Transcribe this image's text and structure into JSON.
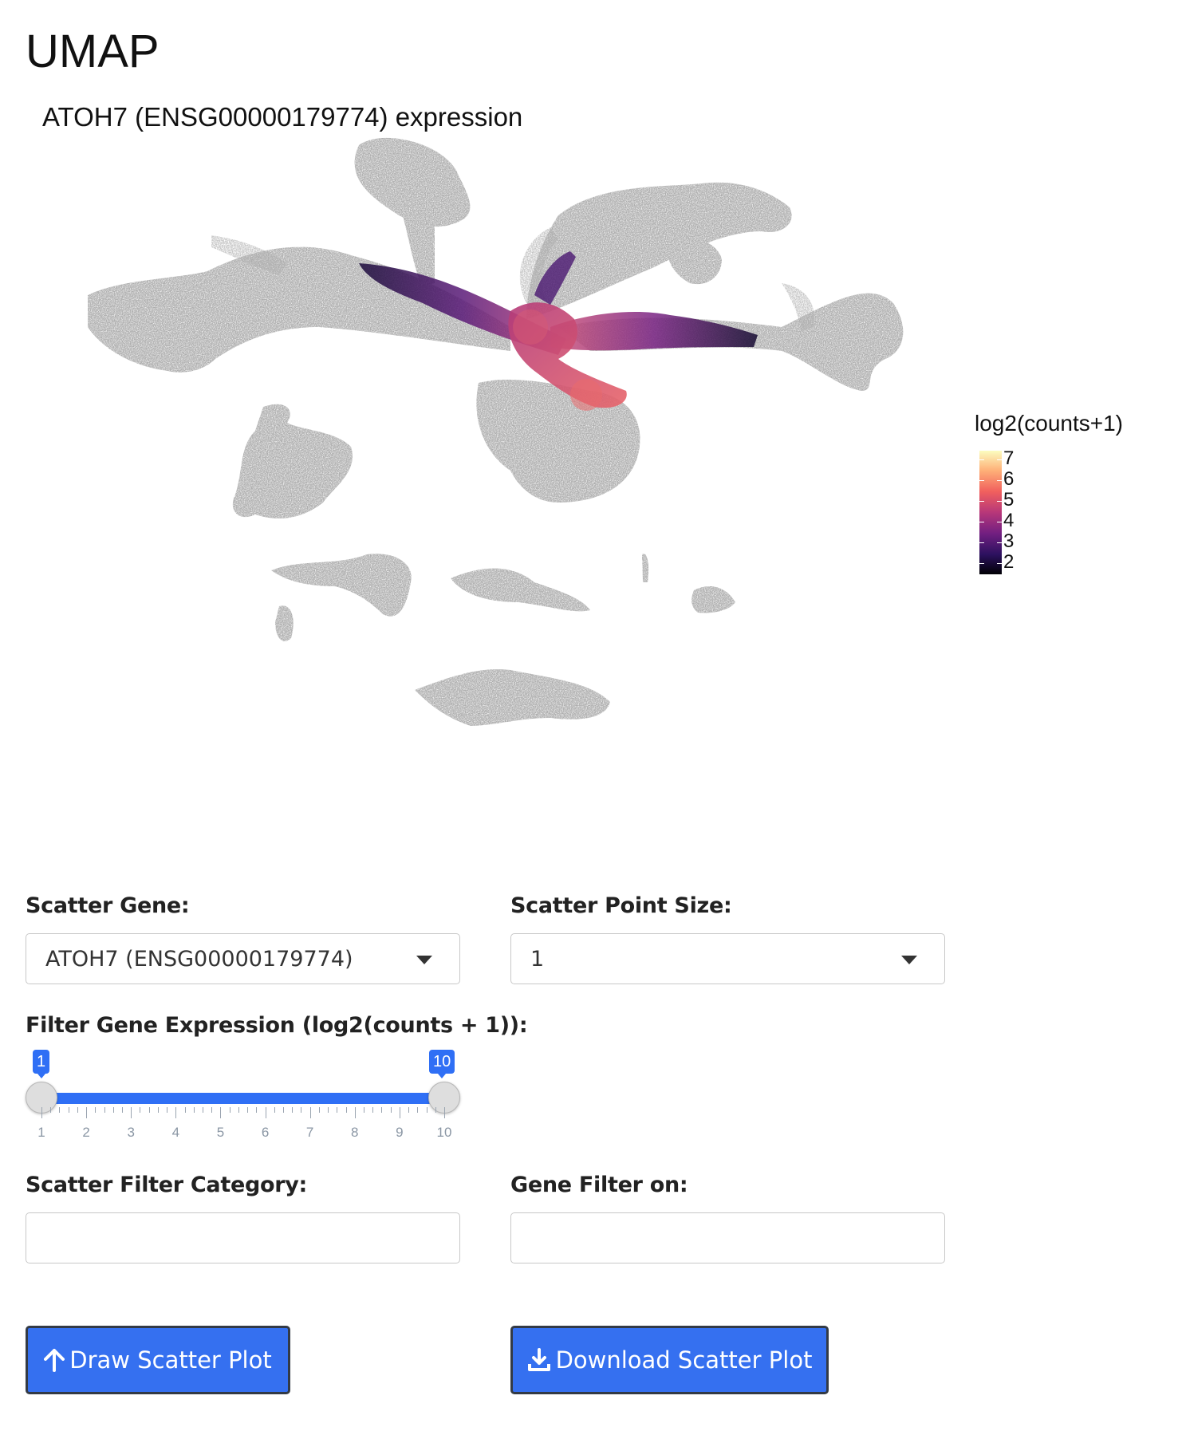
{
  "page": {
    "title": "UMAP"
  },
  "plot": {
    "title": "ATOH7 (ENSG00000179774) expression",
    "legend": {
      "title": "log2(counts+1)",
      "ticks": [
        "7",
        "6",
        "5",
        "4",
        "3",
        "2"
      ]
    },
    "colors": {
      "background_cells": "#6b6b6b",
      "colormap": [
        "#000004",
        "#2c115f",
        "#721f81",
        "#b73779",
        "#f1605d",
        "#feb078",
        "#fcfdbf"
      ]
    }
  },
  "controls": {
    "scatter_gene": {
      "label": "Scatter Gene:",
      "value": "ATOH7 (ENSG00000179774)"
    },
    "point_size": {
      "label": "Scatter Point Size:",
      "value": "1"
    },
    "filter_expression": {
      "label": "Filter Gene Expression (log2(counts + 1)):",
      "min": 1,
      "max": 10,
      "low": "1",
      "high": "10",
      "ticks": [
        "1",
        "2",
        "3",
        "4",
        "5",
        "6",
        "7",
        "8",
        "9",
        "10"
      ]
    },
    "filter_category": {
      "label": "Scatter Filter Category:",
      "value": ""
    },
    "gene_filter_on": {
      "label": "Gene Filter on:",
      "value": ""
    }
  },
  "buttons": {
    "draw": {
      "label": "Draw Scatter Plot",
      "icon": "arrow-up-icon"
    },
    "download": {
      "label": "Download Scatter Plot",
      "icon": "download-icon"
    }
  },
  "colors": {
    "accent": "#3570f0",
    "button_border": "#333a45"
  }
}
